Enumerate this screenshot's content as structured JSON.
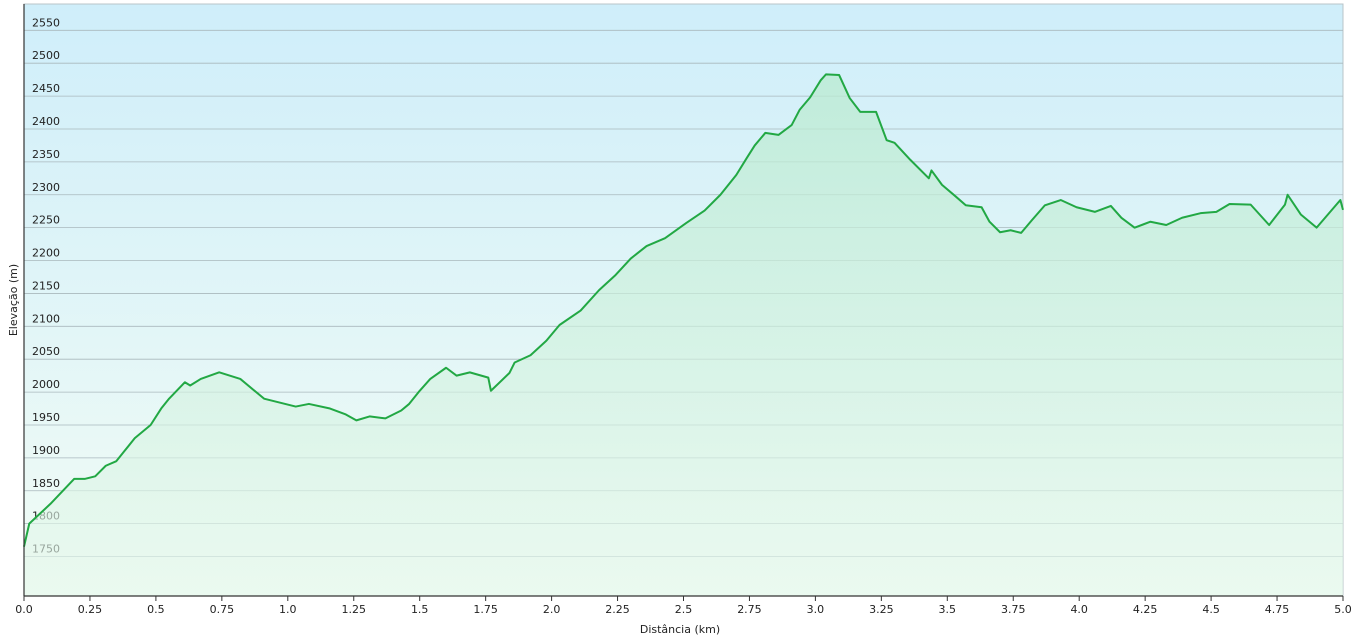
{
  "chart_data": {
    "type": "area",
    "x_label": "Distância  (km)",
    "y_label": "Elevação (m)",
    "color": "#22a844",
    "grid": true,
    "xlim": [
      0,
      5.0
    ],
    "ylim": [
      1690,
      2590
    ],
    "xticks": [
      {
        "value": 0,
        "label": "0.0"
      },
      0.25,
      0.5,
      0.75,
      {
        "value": 1,
        "label": "1.0"
      },
      1.25,
      1.5,
      1.75,
      {
        "value": 2,
        "label": "2.0"
      },
      2.25,
      2.5,
      2.75,
      {
        "value": 3,
        "label": "3.0"
      },
      3.25,
      3.5,
      3.75,
      {
        "value": 4,
        "label": "4.0"
      },
      4.25,
      4.5,
      4.75,
      {
        "value": 5,
        "label": "5.0"
      }
    ],
    "yticks": [
      1750,
      1800,
      1850,
      1900,
      1950,
      2000,
      2050,
      2100,
      2150,
      2200,
      2250,
      2300,
      2350,
      2400,
      2450,
      2500,
      2550
    ],
    "x": [
      0,
      0.02,
      0.1,
      0.19,
      0.23,
      0.27,
      0.31,
      0.35,
      0.38,
      0.42,
      0.48,
      0.52,
      0.55,
      0.61,
      0.63,
      0.67,
      0.74,
      0.82,
      0.91,
      1.03,
      1.08,
      1.16,
      1.22,
      1.26,
      1.31,
      1.37,
      1.43,
      1.46,
      1.5,
      1.54,
      1.6,
      1.64,
      1.69,
      1.76,
      1.77,
      1.84,
      1.86,
      1.92,
      1.98,
      2.03,
      2.11,
      2.18,
      2.24,
      2.3,
      2.36,
      2.43,
      2.51,
      2.58,
      2.64,
      2.7,
      2.74,
      2.77,
      2.81,
      2.86,
      2.91,
      2.94,
      2.98,
      3.02,
      3.04,
      3.09,
      3.13,
      3.17,
      3.23,
      3.27,
      3.3,
      3.36,
      3.43,
      3.44,
      3.48,
      3.53,
      3.57,
      3.63,
      3.66,
      3.7,
      3.74,
      3.78,
      3.82,
      3.87,
      3.93,
      3.99,
      4.06,
      4.12,
      4.16,
      4.21,
      4.27,
      4.33,
      4.39,
      4.46,
      4.52,
      4.57,
      4.65,
      4.72,
      4.78,
      4.79,
      4.84,
      4.9,
      4.99,
      5.0
    ],
    "values": [
      1765,
      1800,
      1830,
      1868,
      1868,
      1872,
      1888,
      1895,
      1910,
      1930,
      1950,
      1975,
      1990,
      2015,
      2010,
      2020,
      2030,
      2020,
      1990,
      1978,
      1982,
      1975,
      1966,
      1957,
      1963,
      1960,
      1972,
      1982,
      2002,
      2020,
      2037,
      2025,
      2030,
      2022,
      2002,
      2029,
      2045,
      2056,
      2078,
      2102,
      2124,
      2155,
      2177,
      2203,
      2222,
      2234,
      2257,
      2276,
      2300,
      2330,
      2356,
      2375,
      2394,
      2391,
      2406,
      2429,
      2448,
      2474,
      2483,
      2482,
      2447,
      2426,
      2426,
      2383,
      2379,
      2353,
      2325,
      2337,
      2315,
      2298,
      2284,
      2281,
      2259,
      2243,
      2246,
      2242,
      2261,
      2284,
      2292,
      2281,
      2274,
      2283,
      2265,
      2250,
      2259,
      2254,
      2265,
      2272,
      2274,
      2286,
      2285,
      2254,
      2285,
      2300,
      2270,
      2250,
      2292,
      2277
    ]
  }
}
